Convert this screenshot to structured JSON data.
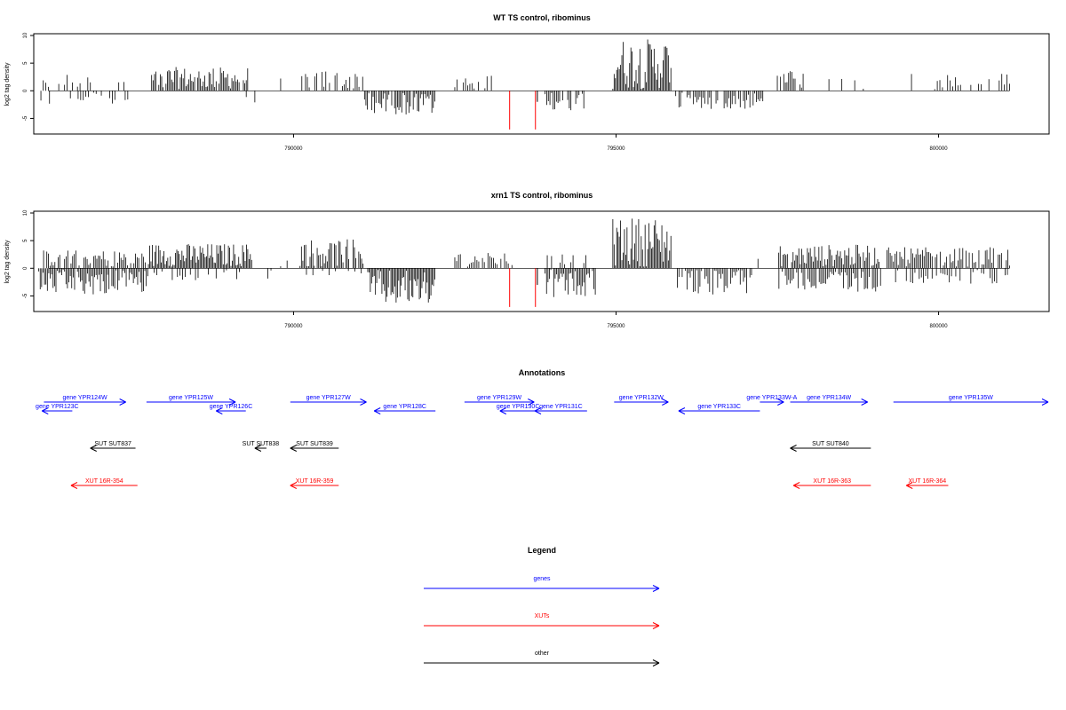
{
  "chart_data": [
    {
      "type": "bar",
      "title": "WT TS control, ribominus",
      "ylabel": "log2 tag density",
      "xlim": [
        786000,
        801700
      ],
      "ylim": [
        -7.5,
        10
      ],
      "yticks": [
        10,
        5,
        0,
        -5
      ],
      "xticks": [
        790000,
        795000,
        800000
      ],
      "color_pos": "#000000",
      "color_neg": "#000000",
      "color_special": "#ff0000",
      "segments": [
        {
          "from": 786050,
          "to": 786350,
          "sign": -1,
          "max": 2.3,
          "density": 0.6
        },
        {
          "from": 786120,
          "to": 786400,
          "sign": 1,
          "max": 2.0,
          "density": 0.5
        },
        {
          "from": 786450,
          "to": 786900,
          "sign": 1,
          "max": 2.8,
          "density": 0.5
        },
        {
          "from": 786500,
          "to": 787050,
          "sign": -1,
          "max": 2.0,
          "density": 0.5
        },
        {
          "from": 787150,
          "to": 787450,
          "sign": -1,
          "max": 2.5,
          "density": 0.5
        },
        {
          "from": 787250,
          "to": 787450,
          "sign": 1,
          "max": 2.5,
          "density": 0.5
        },
        {
          "from": 787800,
          "to": 789300,
          "sign": 1,
          "max": 4.0,
          "density": 0.9
        },
        {
          "from": 789200,
          "to": 789400,
          "sign": -1,
          "max": 2.0,
          "density": 0.3
        },
        {
          "from": 789800,
          "to": 789900,
          "sign": 1,
          "max": 2.0,
          "density": 0.4
        },
        {
          "from": 790100,
          "to": 791100,
          "sign": 1,
          "max": 3.5,
          "density": 0.7
        },
        {
          "from": 791100,
          "to": 792200,
          "sign": -1,
          "max": 4.0,
          "density": 0.9
        },
        {
          "from": 792500,
          "to": 793100,
          "sign": 1,
          "max": 2.5,
          "density": 0.6
        },
        {
          "from": 793900,
          "to": 794500,
          "sign": -1,
          "max": 3.5,
          "density": 0.8
        },
        {
          "from": 794950,
          "to": 795850,
          "sign": 1,
          "max": 9.2,
          "density": 1.0
        },
        {
          "from": 795900,
          "to": 797300,
          "sign": -1,
          "max": 3.0,
          "density": 0.8
        },
        {
          "from": 797500,
          "to": 797900,
          "sign": 1,
          "max": 3.5,
          "density": 0.8
        },
        {
          "from": 798300,
          "to": 798900,
          "sign": 1,
          "max": 2.5,
          "density": 0.3
        },
        {
          "from": 799500,
          "to": 801100,
          "sign": 1,
          "max": 3.0,
          "density": 0.5
        }
      ],
      "special": [
        {
          "x": 793350,
          "y": -7.0
        },
        {
          "x": 793750,
          "y": -7.0
        },
        {
          "x": 793780,
          "y": -2.0
        }
      ]
    },
    {
      "type": "bar",
      "title": "xrn1 TS control, ribominus",
      "ylabel": "log2 tag density",
      "xlim": [
        786000,
        801700
      ],
      "ylim": [
        -7.5,
        10
      ],
      "yticks": [
        10,
        5,
        0,
        -5
      ],
      "xticks": [
        790000,
        795000,
        800000
      ],
      "color_pos": "#000000",
      "color_neg": "#000000",
      "color_special": "#ff0000",
      "segments": [
        {
          "from": 786050,
          "to": 787750,
          "sign": -1,
          "max": 4.5,
          "density": 0.9
        },
        {
          "from": 786100,
          "to": 787700,
          "sign": 1,
          "max": 3.0,
          "density": 0.8
        },
        {
          "from": 787750,
          "to": 789350,
          "sign": 1,
          "max": 4.2,
          "density": 1.0
        },
        {
          "from": 787800,
          "to": 789300,
          "sign": -1,
          "max": 2.0,
          "density": 0.5
        },
        {
          "from": 789550,
          "to": 789650,
          "sign": -1,
          "max": 2.0,
          "density": 0.4
        },
        {
          "from": 789800,
          "to": 789900,
          "sign": 1,
          "max": 2.0,
          "density": 0.4
        },
        {
          "from": 790100,
          "to": 791100,
          "sign": 1,
          "max": 5.0,
          "density": 0.9
        },
        {
          "from": 790150,
          "to": 791100,
          "sign": -1,
          "max": 1.5,
          "density": 0.4
        },
        {
          "from": 791150,
          "to": 792200,
          "sign": -1,
          "max": 6.5,
          "density": 1.0
        },
        {
          "from": 792500,
          "to": 793400,
          "sign": 1,
          "max": 2.5,
          "density": 0.7
        },
        {
          "from": 793900,
          "to": 794700,
          "sign": -1,
          "max": 5.0,
          "density": 0.9
        },
        {
          "from": 793900,
          "to": 794600,
          "sign": 1,
          "max": 2.5,
          "density": 0.6
        },
        {
          "from": 794950,
          "to": 795850,
          "sign": 1,
          "max": 9.0,
          "density": 1.0
        },
        {
          "from": 795950,
          "to": 797100,
          "sign": -1,
          "max": 4.5,
          "density": 0.8
        },
        {
          "from": 797200,
          "to": 797300,
          "sign": 1,
          "max": 1.5,
          "density": 0.4
        },
        {
          "from": 797500,
          "to": 799100,
          "sign": 1,
          "max": 4.0,
          "density": 0.9
        },
        {
          "from": 797500,
          "to": 799100,
          "sign": -1,
          "max": 4.0,
          "density": 0.8
        },
        {
          "from": 799200,
          "to": 801100,
          "sign": 1,
          "max": 3.5,
          "density": 0.8
        },
        {
          "from": 799300,
          "to": 801100,
          "sign": -1,
          "max": 2.5,
          "density": 0.6
        }
      ],
      "special": [
        {
          "x": 793350,
          "y": -7.0
        },
        {
          "x": 793750,
          "y": -7.0
        },
        {
          "x": 793780,
          "y": -3.0
        }
      ]
    }
  ],
  "annotations": {
    "title": "Annotations",
    "xlim": [
      786000,
      801700
    ],
    "colors": {
      "genes": "#0000ff",
      "XUTs": "#ff0000",
      "other": "#000000"
    },
    "features": [
      {
        "label": "gene YPR124W",
        "row": 0,
        "start": 786130,
        "end": 787400,
        "dir": 1,
        "kind": "genes"
      },
      {
        "label": "gene YPR123C",
        "row": 1,
        "start": 786100,
        "end": 786570,
        "dir": -1,
        "kind": "genes"
      },
      {
        "label": "gene YPR125W",
        "row": 0,
        "start": 787720,
        "end": 789100,
        "dir": 1,
        "kind": "genes"
      },
      {
        "label": "gene YPR126C",
        "row": 1,
        "start": 788800,
        "end": 789260,
        "dir": -1,
        "kind": "genes"
      },
      {
        "label": "gene YPR127W",
        "row": 0,
        "start": 789950,
        "end": 791130,
        "dir": 1,
        "kind": "genes"
      },
      {
        "label": "gene YPR128C",
        "row": 1,
        "start": 791250,
        "end": 792200,
        "dir": -1,
        "kind": "genes"
      },
      {
        "label": "gene YPR129W",
        "row": 0,
        "start": 792650,
        "end": 793730,
        "dir": 1,
        "kind": "genes"
      },
      {
        "label": "gene YPR130C",
        "row": 1,
        "start": 793200,
        "end": 793760,
        "dir": -1,
        "kind": "genes"
      },
      {
        "label": "gene YPR131C",
        "row": 1,
        "start": 793740,
        "end": 794550,
        "dir": -1,
        "kind": "genes"
      },
      {
        "label": "gene YPR132W",
        "row": 0,
        "start": 794970,
        "end": 795810,
        "dir": 1,
        "kind": "genes"
      },
      {
        "label": "gene YPR133C",
        "row": 1,
        "start": 795970,
        "end": 797230,
        "dir": -1,
        "kind": "genes"
      },
      {
        "label": "gene YPR133W-A",
        "row": 0,
        "start": 797230,
        "end": 797600,
        "dir": 1,
        "kind": "genes"
      },
      {
        "label": "gene YPR134W",
        "row": 0,
        "start": 797700,
        "end": 798900,
        "dir": 1,
        "kind": "genes"
      },
      {
        "label": "gene YPR135W",
        "row": 0,
        "start": 799300,
        "end": 801700,
        "dir": 1,
        "kind": "genes"
      },
      {
        "label": "SUT SUT837",
        "row": 2,
        "start": 786850,
        "end": 787550,
        "dir": -1,
        "kind": "other"
      },
      {
        "label": "SUT SUT838",
        "row": 2,
        "start": 789400,
        "end": 789580,
        "dir": -1,
        "kind": "other"
      },
      {
        "label": "SUT SUT839",
        "row": 2,
        "start": 789950,
        "end": 790700,
        "dir": -1,
        "kind": "other"
      },
      {
        "label": "SUT SUT840",
        "row": 2,
        "start": 797700,
        "end": 798950,
        "dir": -1,
        "kind": "other"
      },
      {
        "label": "XUT 16R-354",
        "row": 3,
        "start": 786550,
        "end": 787580,
        "dir": -1,
        "kind": "XUTs"
      },
      {
        "label": "XUT 16R-359",
        "row": 3,
        "start": 789950,
        "end": 790700,
        "dir": -1,
        "kind": "XUTs"
      },
      {
        "label": "XUT 16R-363",
        "row": 3,
        "start": 797750,
        "end": 798950,
        "dir": -1,
        "kind": "XUTs"
      },
      {
        "label": "XUT 16R-364",
        "row": 3,
        "start": 799500,
        "end": 800150,
        "dir": -1,
        "kind": "XUTs"
      }
    ]
  },
  "legend": {
    "title": "Legend",
    "items": [
      {
        "label": "genes",
        "kind": "genes"
      },
      {
        "label": "XUTs",
        "kind": "XUTs"
      },
      {
        "label": "other",
        "kind": "other"
      }
    ]
  }
}
